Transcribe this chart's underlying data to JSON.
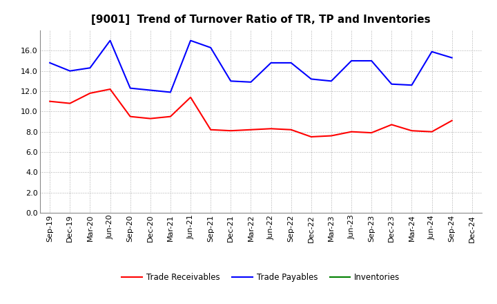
{
  "title": "[9001]  Trend of Turnover Ratio of TR, TP and Inventories",
  "x_labels": [
    "Sep-19",
    "Dec-19",
    "Mar-20",
    "Jun-20",
    "Sep-20",
    "Dec-20",
    "Mar-21",
    "Jun-21",
    "Sep-21",
    "Dec-21",
    "Mar-22",
    "Jun-22",
    "Sep-22",
    "Dec-22",
    "Mar-23",
    "Jun-23",
    "Sep-23",
    "Dec-23",
    "Mar-24",
    "Jun-24",
    "Sep-24",
    "Dec-24"
  ],
  "trade_receivables": [
    11.0,
    10.8,
    11.8,
    12.2,
    9.5,
    9.3,
    9.5,
    11.4,
    8.2,
    8.1,
    8.2,
    8.3,
    8.2,
    7.5,
    7.6,
    8.0,
    7.9,
    8.7,
    8.1,
    8.0,
    9.1,
    null
  ],
  "trade_payables": [
    14.8,
    14.0,
    14.3,
    17.0,
    12.3,
    12.1,
    11.9,
    17.0,
    16.3,
    13.0,
    12.9,
    14.8,
    14.8,
    13.2,
    13.0,
    15.0,
    15.0,
    12.7,
    12.6,
    15.9,
    15.3,
    null
  ],
  "inventories": [
    null,
    null,
    null,
    null,
    null,
    null,
    null,
    null,
    null,
    null,
    null,
    null,
    null,
    null,
    null,
    null,
    null,
    null,
    null,
    null,
    null,
    null
  ],
  "ylim": [
    0,
    18.0
  ],
  "yticks": [
    0.0,
    2.0,
    4.0,
    6.0,
    8.0,
    10.0,
    12.0,
    14.0,
    16.0
  ],
  "tr_color": "#ff0000",
  "tp_color": "#0000ff",
  "inv_color": "#008000",
  "background_color": "#ffffff",
  "grid_color": "#aaaaaa",
  "title_fontsize": 11,
  "tick_fontsize": 8,
  "legend_fontsize": 8.5,
  "legend_labels": [
    "Trade Receivables",
    "Trade Payables",
    "Inventories"
  ]
}
